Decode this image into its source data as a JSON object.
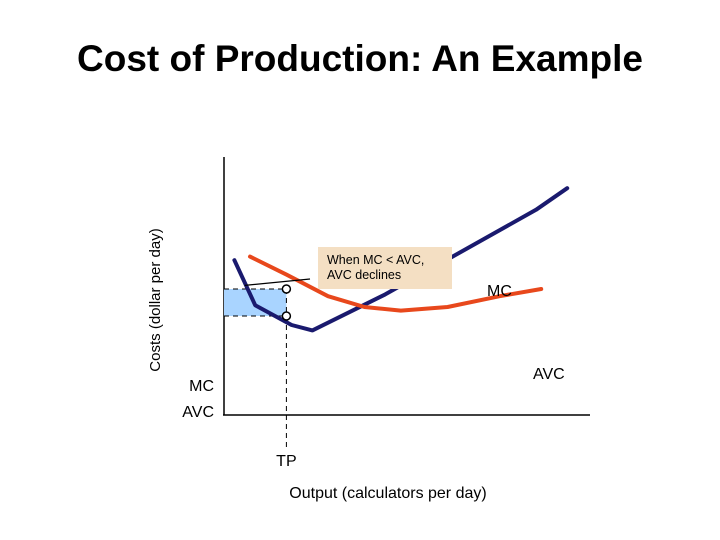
{
  "title": "Cost of Production: An Example",
  "chart_data": {
    "type": "line",
    "title": "Cost of Production: An Example",
    "xlabel": "Output (calculators per day)",
    "ylabel": "Costs (dollar per day)",
    "grid": false,
    "series": [
      {
        "name": "MC",
        "color": "#1a1a6e",
        "points": [
          [
            0.2,
            8.6
          ],
          [
            0.6,
            6.1
          ],
          [
            1.3,
            5.0
          ],
          [
            1.7,
            4.7
          ],
          [
            3.1,
            6.7
          ],
          [
            6.0,
            11.4
          ],
          [
            6.6,
            12.6
          ]
        ]
      },
      {
        "name": "AVC",
        "color": "#e8481c",
        "points": [
          [
            0.5,
            8.8
          ],
          [
            1.2,
            7.8
          ],
          [
            2.0,
            6.6
          ],
          [
            2.7,
            6.0
          ],
          [
            3.4,
            5.8
          ],
          [
            4.3,
            6.0
          ],
          [
            5.3,
            6.6
          ],
          [
            6.1,
            7.0
          ]
        ]
      }
    ],
    "tick_labels": {
      "x": "TP",
      "y_upper": "MC",
      "y_lower": "AVC"
    },
    "reference": {
      "x": 1.2,
      "mc_y": 7.0,
      "avc_y": 5.5
    },
    "annotation": {
      "line1": "When MC < AVC,",
      "line2": "AVC declines",
      "pointer_to": [
        0.4,
        7.2
      ]
    },
    "xlim": [
      0,
      7
    ],
    "ylim": [
      0,
      14
    ],
    "colors": {
      "box_fill": "#a9d4ff",
      "annotation_fill": "#f4dfc3"
    }
  }
}
